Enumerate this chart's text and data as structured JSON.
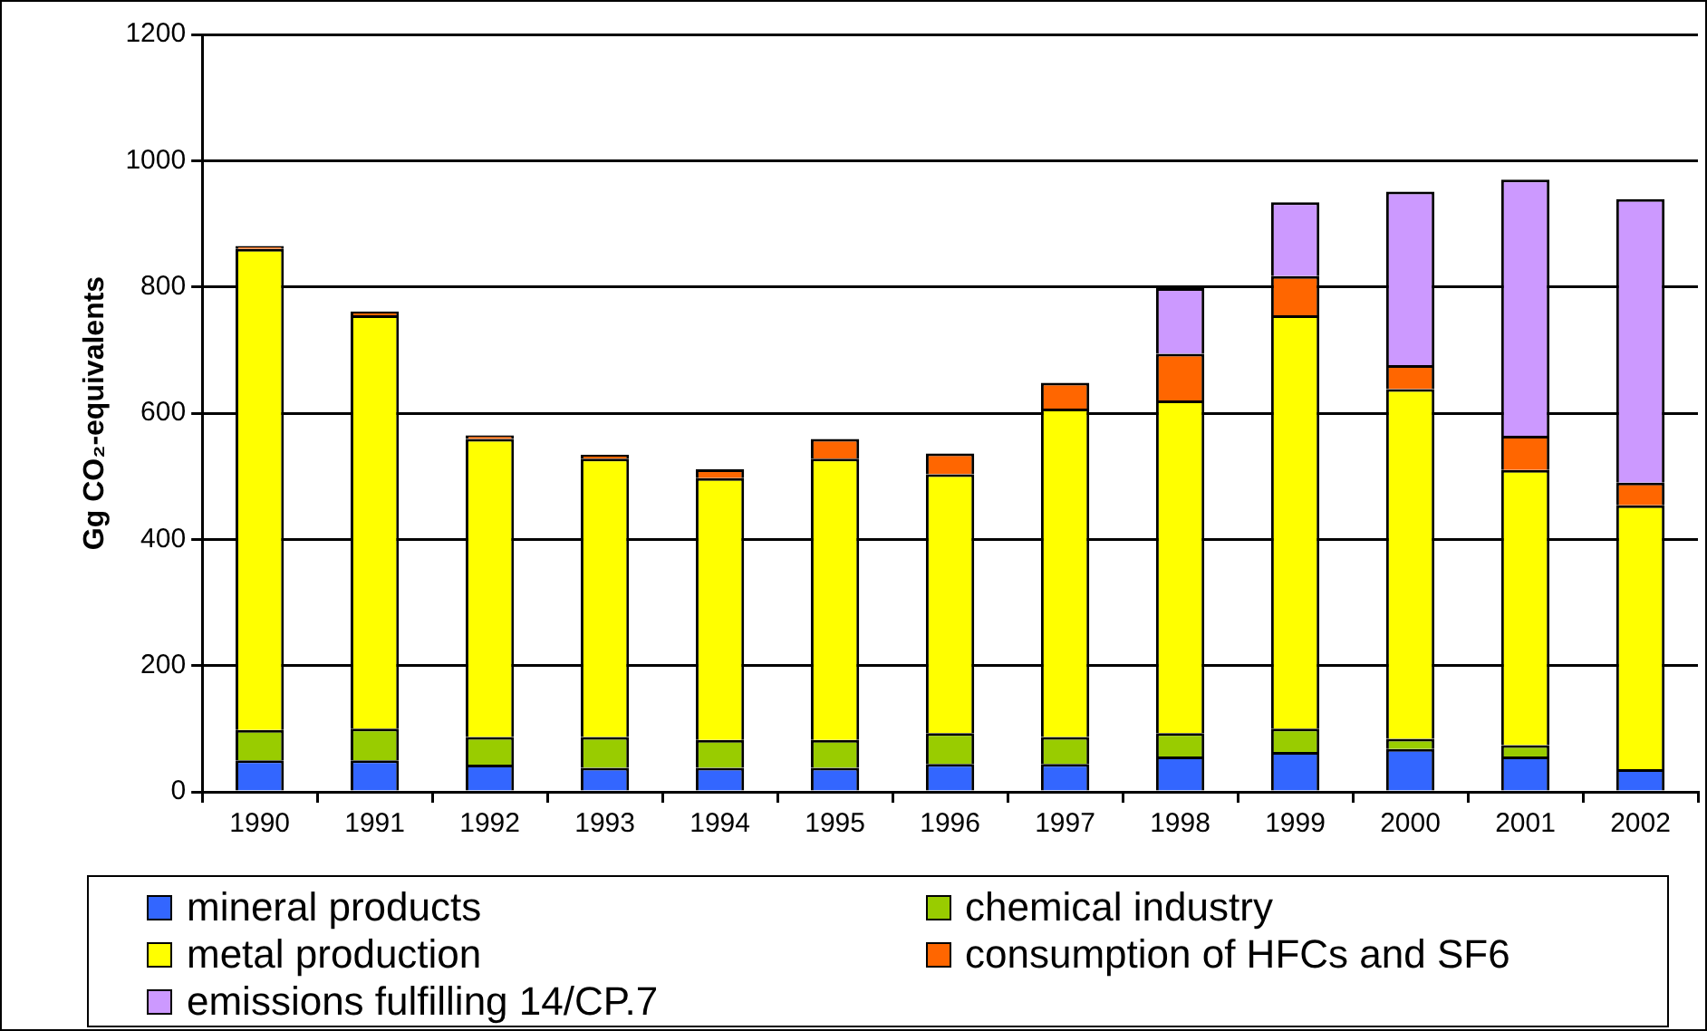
{
  "chart_data": {
    "type": "bar",
    "stacked": true,
    "ylabel": "Gg CO₂-equivalents",
    "categories": [
      "1990",
      "1991",
      "1992",
      "1993",
      "1994",
      "1995",
      "1996",
      "1997",
      "1998",
      "1999",
      "2000",
      "2001",
      "2002"
    ],
    "series": [
      {
        "name": "mineral products",
        "color": "#3366ff",
        "values": [
          50,
          50,
          43,
          38,
          38,
          38,
          44,
          44,
          56,
          63,
          68,
          56,
          36
        ]
      },
      {
        "name": "chemical industry",
        "color": "#99cc00",
        "values": [
          48,
          50,
          44,
          49,
          44,
          44,
          49,
          43,
          37,
          37,
          16,
          18,
          null
        ]
      },
      {
        "name": "metal production",
        "color": "#ffff00",
        "values": [
          762,
          655,
          472,
          441,
          415,
          446,
          410,
          520,
          527,
          655,
          554,
          436,
          418
        ]
      },
      {
        "name": "consumption of HFCs and SF6",
        "color": "#ff6600",
        "values": [
          5,
          6,
          6,
          6,
          14,
          31,
          33,
          41,
          74,
          62,
          38,
          54,
          36
        ]
      },
      {
        "name": "emissions fulfilling 14/CP.7",
        "color": "#cc99ff",
        "values": [
          null,
          null,
          null,
          null,
          null,
          null,
          null,
          null,
          104,
          117,
          275,
          406,
          449
        ]
      }
    ],
    "ylim": [
      0,
      1200
    ],
    "yticks": [
      0,
      200,
      400,
      600,
      800,
      1000,
      1200
    ],
    "grid": "y",
    "legend": "bottom"
  }
}
